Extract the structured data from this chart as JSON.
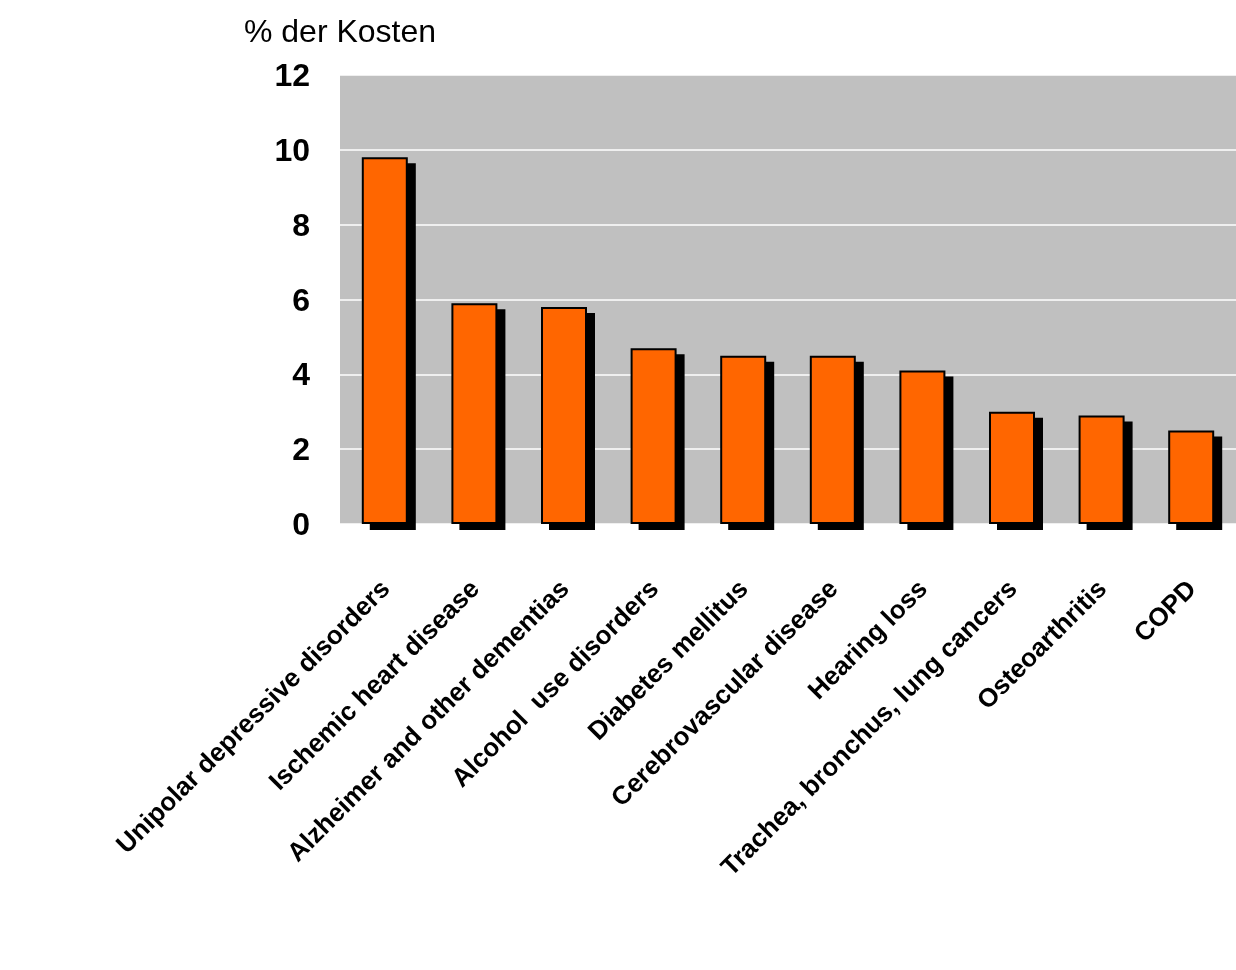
{
  "chart_data": {
    "type": "bar",
    "ylabel": "% der Kosten",
    "categories": [
      "Unipolar depressive disorders",
      "Ischemic heart disease",
      "Alzheimer and other dementias",
      "Alcohol  use disorders",
      "Diabetes mellitus",
      "Cerebrovascular disease",
      "Hearing loss",
      "Trachea, bronchus, lung cancers",
      "Osteoarthritis",
      "COPD"
    ],
    "values": [
      9.8,
      5.9,
      5.8,
      4.7,
      4.5,
      4.5,
      4.1,
      3.0,
      2.9,
      2.5
    ],
    "color": "#ff6600",
    "ylim": [
      0,
      12
    ],
    "yticks": [
      0,
      2,
      4,
      6,
      8,
      10,
      12
    ],
    "grid": "y"
  }
}
